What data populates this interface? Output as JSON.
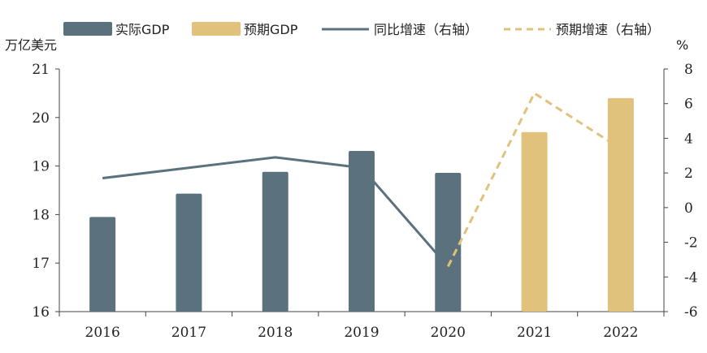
{
  "chart_data": {
    "type": "bar",
    "categories": [
      "2016",
      "2017",
      "2018",
      "2019",
      "2020",
      "2021",
      "2022"
    ],
    "series": [
      {
        "name": "实际GDP",
        "kind": "bar",
        "axis": "left",
        "color": "#5b717e",
        "values": [
          17.95,
          18.43,
          18.88,
          19.31,
          18.86,
          null,
          null
        ]
      },
      {
        "name": "预期GDP",
        "kind": "bar",
        "axis": "left",
        "color": "#e0c27c",
        "values": [
          null,
          null,
          null,
          null,
          null,
          19.7,
          20.4
        ]
      },
      {
        "name": "同比增速（右轴）",
        "kind": "line",
        "axis": "right",
        "color": "#5b717e",
        "dashed": false,
        "values": [
          1.7,
          2.3,
          2.9,
          2.3,
          -3.4,
          null,
          null
        ]
      },
      {
        "name": "预期增速（右轴）",
        "kind": "line",
        "axis": "right",
        "color": "#e0c27c",
        "dashed": true,
        "values": [
          null,
          null,
          null,
          null,
          -3.4,
          6.6,
          3.4
        ]
      }
    ],
    "left_axis": {
      "unit_label": "万亿美元",
      "ylim": [
        16,
        21
      ],
      "ticks": [
        "16",
        "17",
        "18",
        "19",
        "20",
        "21"
      ]
    },
    "right_axis": {
      "unit_label": "%",
      "ylim": [
        -6,
        8
      ],
      "ticks": [
        "-6",
        "-4",
        "-2",
        "0",
        "2",
        "4",
        "6",
        "8"
      ]
    },
    "grid": false,
    "legend_position": "top"
  }
}
